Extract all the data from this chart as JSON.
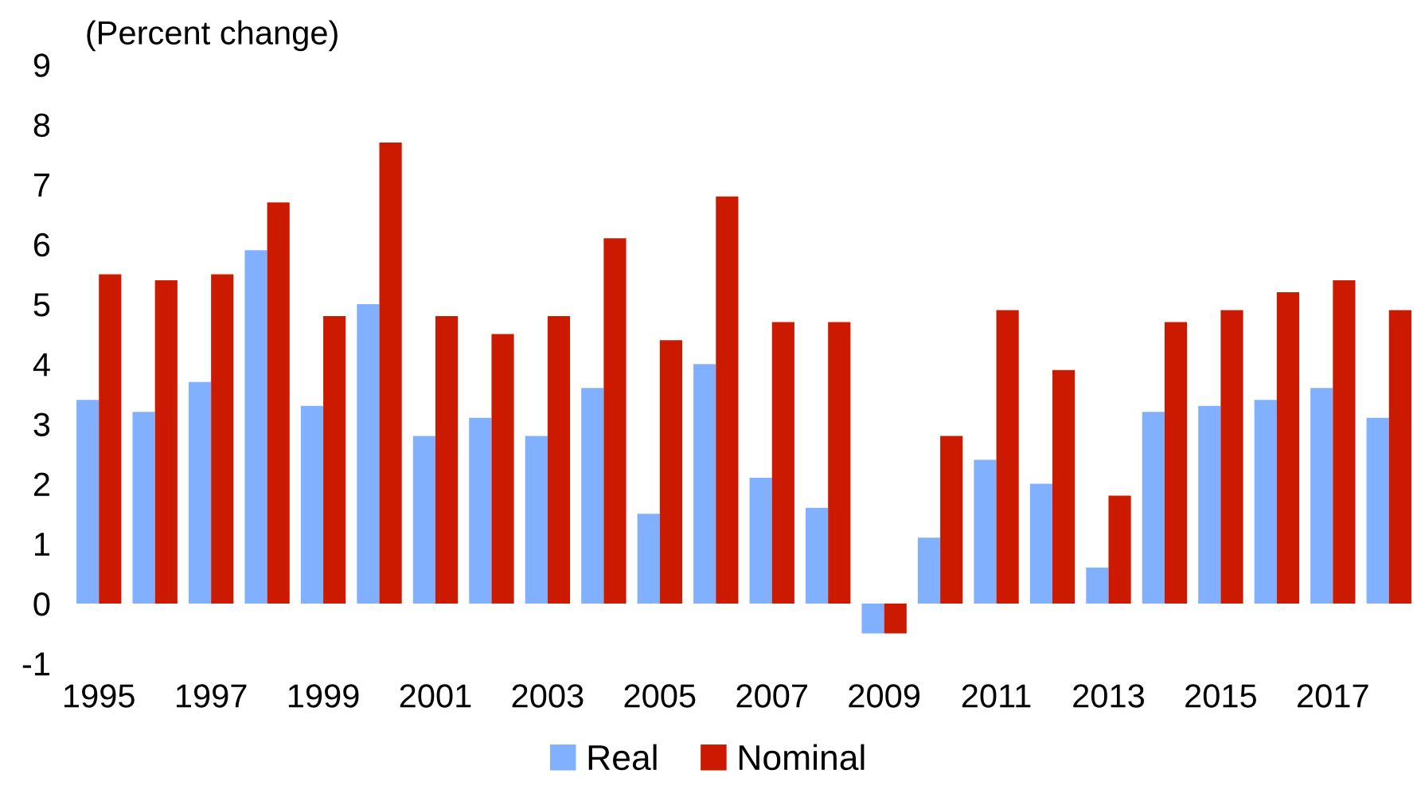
{
  "chart_data": {
    "type": "bar",
    "ylabel": "(Percent change)",
    "categories": [
      "1995",
      null,
      "1997",
      null,
      "1999",
      null,
      "2001",
      null,
      "2003",
      null,
      "2005",
      null,
      "2007",
      null,
      "2009",
      null,
      "2011",
      null,
      "2013",
      null,
      "2015",
      null,
      "2017",
      null
    ],
    "series": [
      {
        "name": "Real",
        "color": "#80b0ff",
        "values": [
          3.4,
          3.2,
          3.7,
          5.9,
          3.3,
          5.0,
          2.8,
          3.1,
          2.8,
          3.6,
          1.5,
          4.0,
          2.1,
          1.6,
          -0.5,
          1.1,
          2.4,
          2.0,
          0.6,
          3.2,
          3.3,
          3.4,
          3.6,
          3.1
        ]
      },
      {
        "name": "Nominal",
        "color": "#cc1a00",
        "values": [
          5.5,
          5.4,
          5.5,
          6.7,
          4.8,
          7.7,
          4.8,
          4.5,
          4.8,
          6.1,
          4.4,
          6.8,
          4.7,
          4.7,
          -0.5,
          2.8,
          4.9,
          3.9,
          1.8,
          4.7,
          4.9,
          5.2,
          5.4,
          4.9
        ]
      }
    ],
    "ylim": [
      -1,
      9
    ],
    "yticks": [
      -1,
      0,
      1,
      2,
      3,
      4,
      5,
      6,
      7,
      8,
      9
    ],
    "grid": false,
    "legend": "bottom"
  }
}
